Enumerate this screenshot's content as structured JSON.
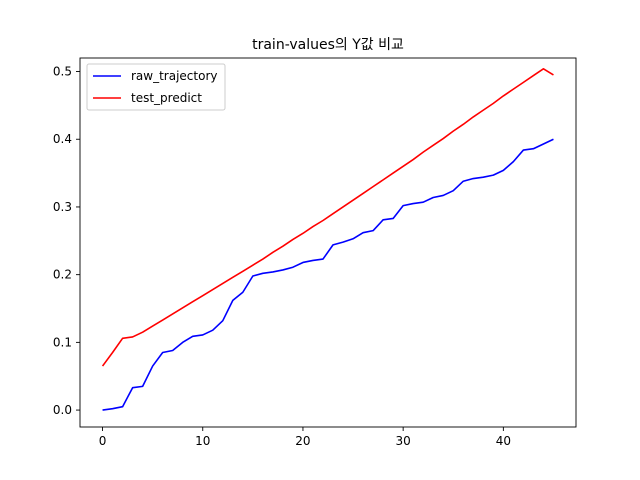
{
  "chart_data": {
    "type": "line",
    "title": "train-values의 Y값 비교",
    "xlabel": "",
    "ylabel": "",
    "xlim": [
      -2.25,
      47.25
    ],
    "ylim": [
      -0.025,
      0.52
    ],
    "xticks": [
      0,
      10,
      20,
      30,
      40
    ],
    "yticks": [
      0.0,
      0.1,
      0.2,
      0.3,
      0.4,
      0.5
    ],
    "ytick_labels": [
      "0.0",
      "0.1",
      "0.2",
      "0.3",
      "0.4",
      "0.5"
    ],
    "grid": false,
    "legend_position": "upper left",
    "x": [
      0,
      1,
      2,
      3,
      4,
      5,
      6,
      7,
      8,
      9,
      10,
      11,
      12,
      13,
      14,
      15,
      16,
      17,
      18,
      19,
      20,
      21,
      22,
      23,
      24,
      25,
      26,
      27,
      28,
      29,
      30,
      31,
      32,
      33,
      34,
      35,
      36,
      37,
      38,
      39,
      40,
      41,
      42,
      43,
      44,
      45
    ],
    "series": [
      {
        "name": "raw_trajectory",
        "color": "#0000ff",
        "values": [
          0.0,
          0.002,
          0.005,
          0.033,
          0.035,
          0.065,
          0.085,
          0.088,
          0.1,
          0.109,
          0.111,
          0.118,
          0.132,
          0.162,
          0.174,
          0.198,
          0.202,
          0.204,
          0.207,
          0.211,
          0.218,
          0.221,
          0.223,
          0.244,
          0.248,
          0.253,
          0.262,
          0.265,
          0.281,
          0.283,
          0.302,
          0.305,
          0.307,
          0.314,
          0.317,
          0.324,
          0.338,
          0.342,
          0.344,
          0.347,
          0.354,
          0.367,
          0.384,
          0.386,
          0.393,
          0.4
        ]
      },
      {
        "name": "test_predict",
        "color": "#ff0000",
        "values": [
          0.065,
          0.085,
          0.106,
          0.108,
          0.115,
          0.124,
          0.133,
          0.142,
          0.151,
          0.16,
          0.169,
          0.178,
          0.187,
          0.196,
          0.205,
          0.214,
          0.223,
          0.233,
          0.242,
          0.252,
          0.261,
          0.271,
          0.28,
          0.29,
          0.3,
          0.31,
          0.32,
          0.33,
          0.34,
          0.35,
          0.36,
          0.37,
          0.381,
          0.391,
          0.401,
          0.412,
          0.422,
          0.433,
          0.443,
          0.453,
          0.464,
          0.474,
          0.484,
          0.494,
          0.504,
          0.494
        ]
      }
    ]
  }
}
